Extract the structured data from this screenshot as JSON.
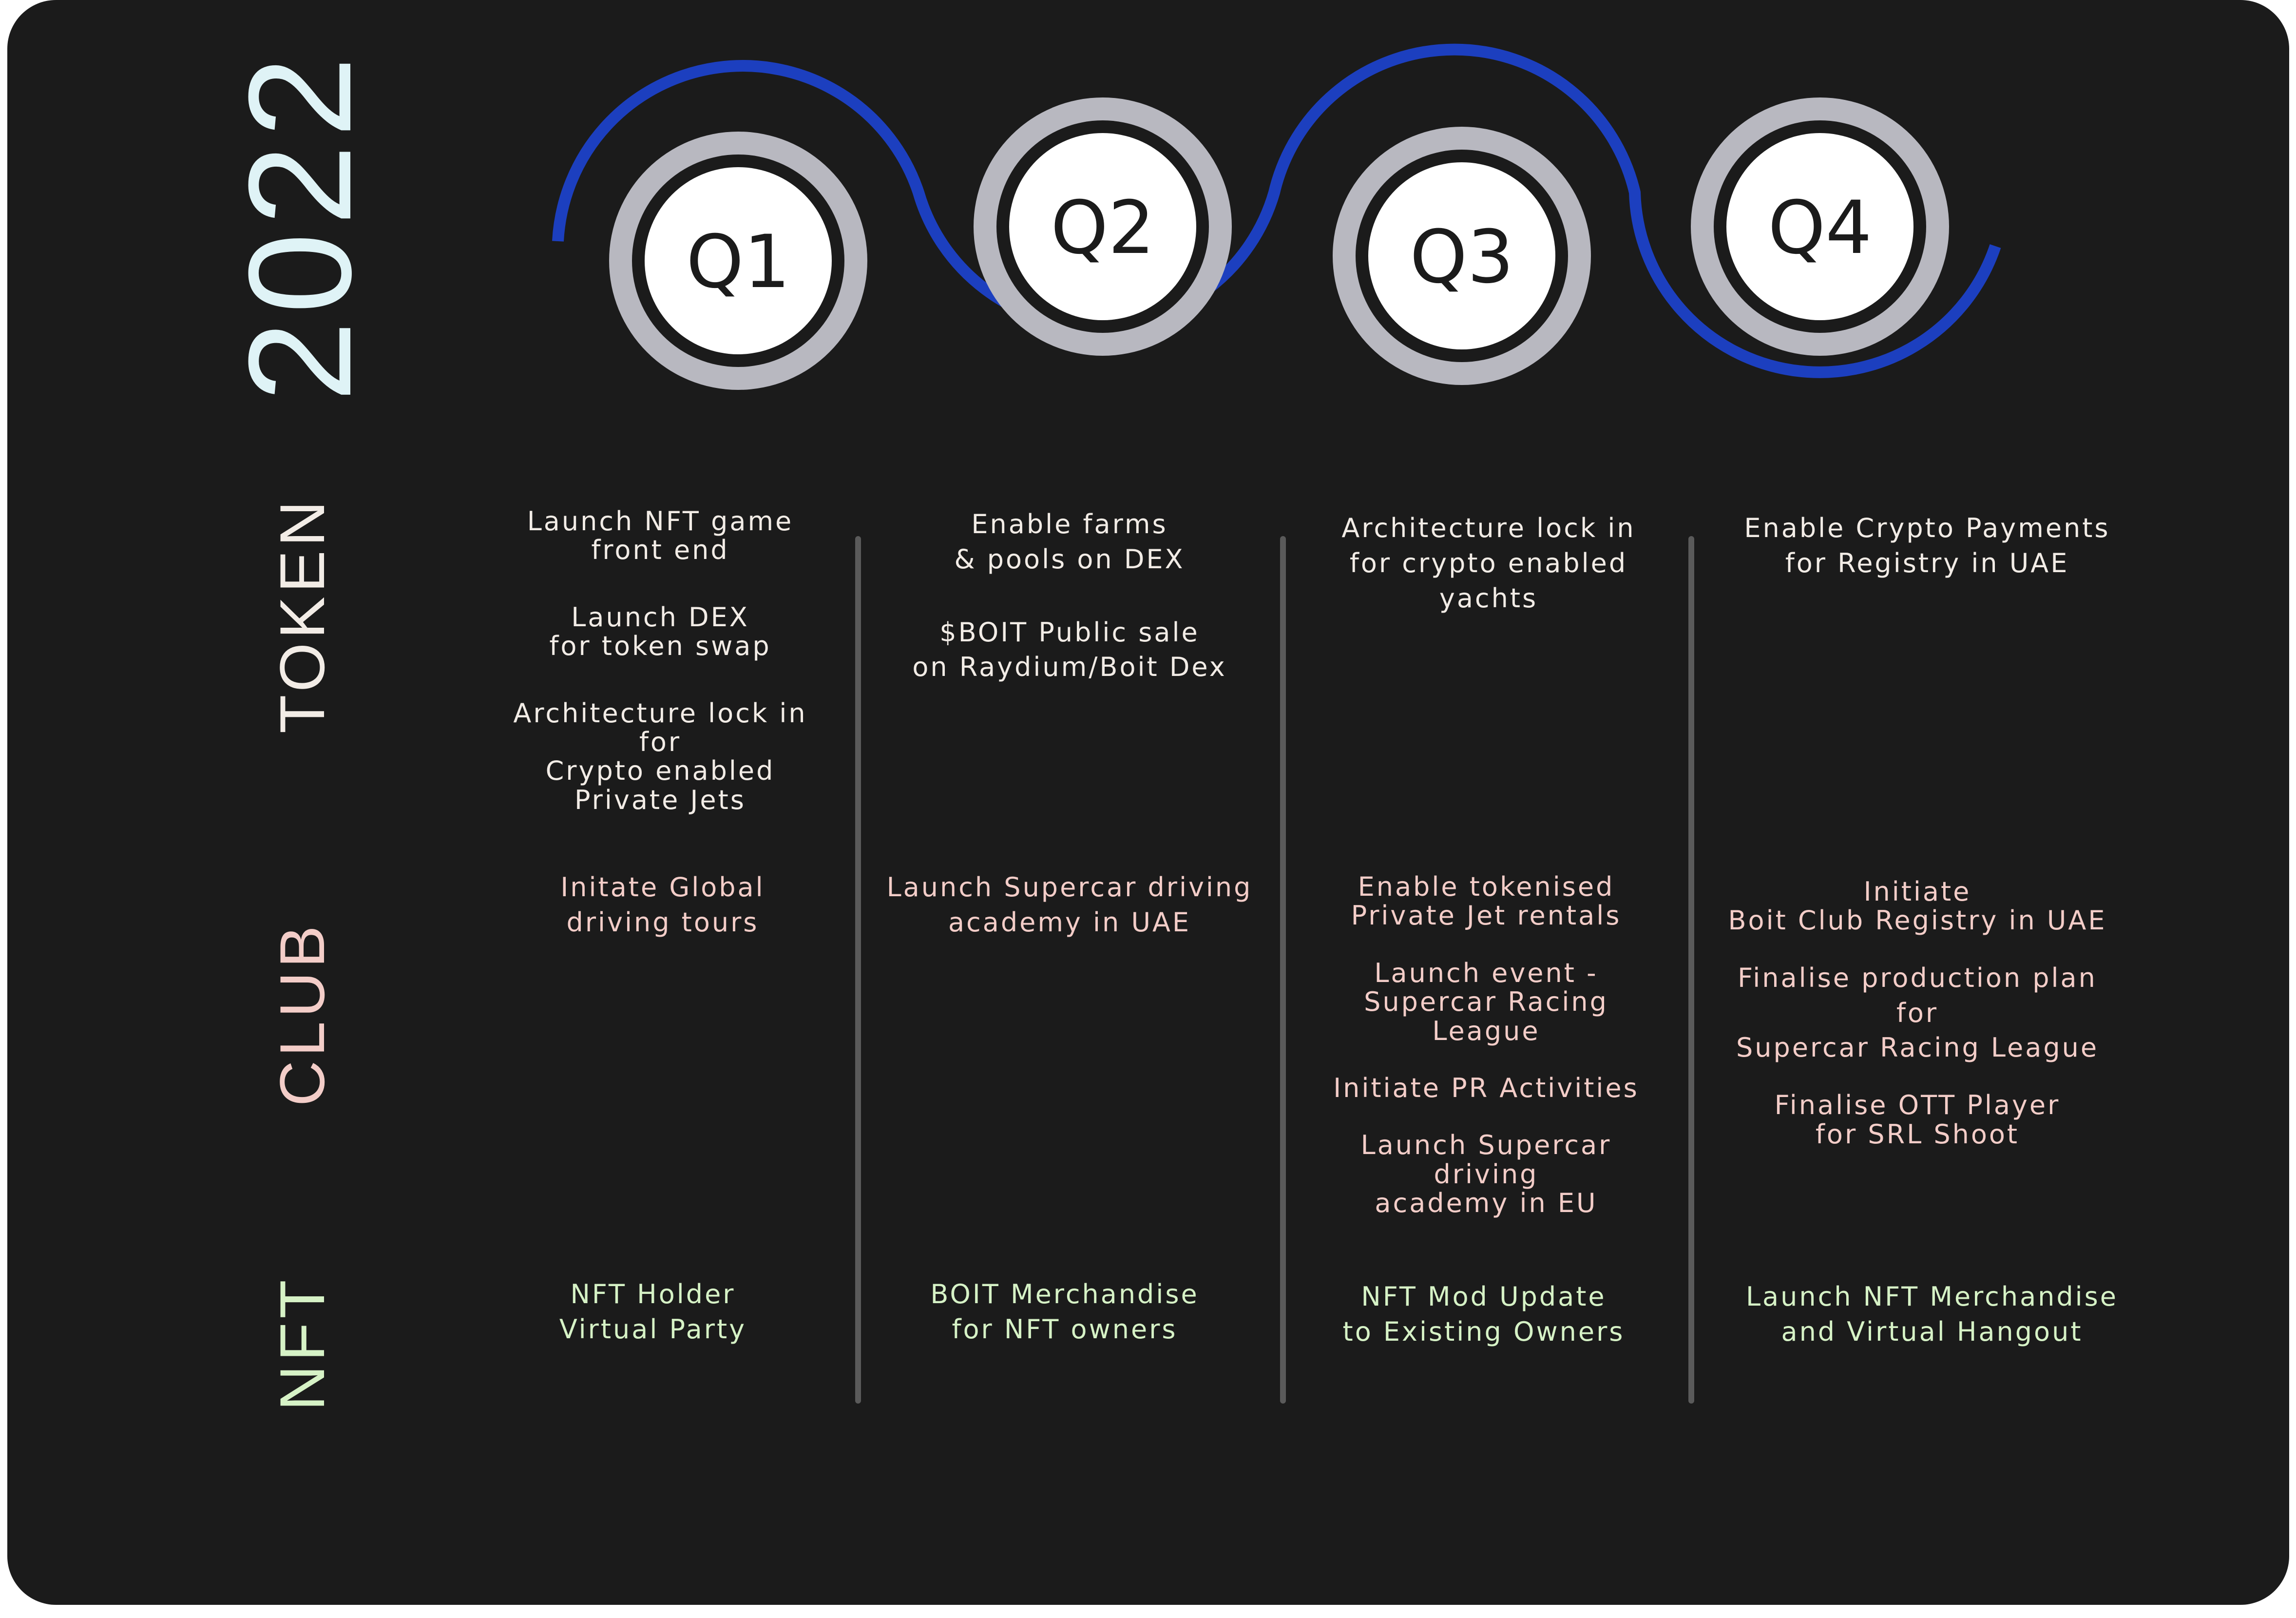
{
  "year": "2022",
  "rows": {
    "token": "TOKEN",
    "club": "CLUB",
    "nft": "NFT"
  },
  "colors": {
    "background": "#1b1b1b",
    "year": "#dff3f6",
    "token": "#f2ece6",
    "club": "#f3cdc8",
    "nft": "#d6f2c6",
    "timeline_arc": "#1c3fbf",
    "ring_outer": "#b8b8c0",
    "ring_fill": "#ffffff",
    "divider": "#5a5a5a"
  },
  "quarters": [
    {
      "label": "Q1",
      "token": [
        "Launch NFT game\nfront end",
        "Launch DEX\nfor token swap",
        "Architecture lock in for\nCrypto enabled\nPrivate Jets"
      ],
      "club": [
        "Initate Global\ndriving tours"
      ],
      "nft": [
        "NFT Holder\nVirtual Party"
      ]
    },
    {
      "label": "Q2",
      "token": [
        "Enable farms\n& pools on DEX",
        "$BOIT Public sale\non Raydium/Boit Dex"
      ],
      "club": [
        "Launch Supercar driving\nacademy in UAE"
      ],
      "nft": [
        "BOIT Merchandise\nfor NFT owners"
      ]
    },
    {
      "label": "Q3",
      "token": [
        "Architecture lock in\nfor crypto enabled\nyachts"
      ],
      "club": [
        "Enable tokenised\nPrivate Jet rentals",
        "Launch event -\nSupercar Racing League",
        "Initiate PR Activities",
        "Launch Supercar driving\nacademy in EU"
      ],
      "nft": [
        "NFT Mod Update\nto Existing Owners"
      ]
    },
    {
      "label": "Q4",
      "token": [
        "Enable Crypto Payments\nfor Registry in UAE"
      ],
      "club": [
        "Initiate\nBoit Club Registry in UAE",
        "Finalise production plan for\nSupercar Racing League",
        "Finalise OTT Player\nfor SRL Shoot"
      ],
      "nft": [
        "Launch NFT Merchandise\nand Virtual Hangout"
      ]
    }
  ]
}
